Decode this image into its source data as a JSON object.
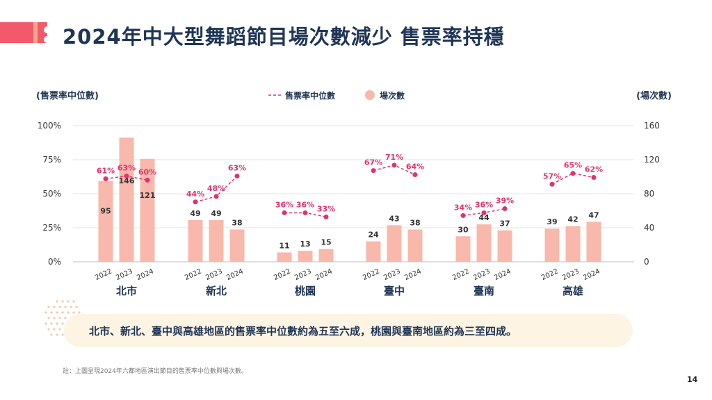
{
  "slide": {
    "title": "2024年中大型舞蹈節目場次數減少 售票率持穩",
    "summary": "北市、新北、臺中與高雄地區的售票率中位數約為五至六成，桃園與臺南地區約為三至四成。",
    "note": "註：上圖呈現2024年六都地區演出節目的售票率中位數與場次數。",
    "page_number": "14"
  },
  "colors": {
    "bar": "#f8b8ab",
    "line": "#e0336e",
    "title": "#1f3556",
    "accent": "#f25a6b"
  },
  "chart_data": {
    "type": "bar",
    "left_axis_label": "(售票率中位數)",
    "right_axis_label": "(場次數)",
    "legend": {
      "line": "售票率中位數",
      "bar": "場次數",
      "placement": "top-center"
    },
    "left_axis": {
      "ticks": [
        "0%",
        "25%",
        "50%",
        "75%",
        "100%"
      ],
      "range": [
        0,
        100
      ]
    },
    "right_axis": {
      "ticks": [
        "0",
        "40",
        "80",
        "120",
        "160"
      ],
      "range": [
        0,
        160
      ]
    },
    "grid": true,
    "groups": [
      {
        "region": "北市",
        "years": [
          "2022",
          "2023",
          "2024"
        ],
        "counts": [
          95,
          146,
          121
        ],
        "rates": [
          61,
          63,
          60
        ]
      },
      {
        "region": "新北",
        "years": [
          "2022",
          "2023",
          "2024"
        ],
        "counts": [
          49,
          49,
          38
        ],
        "rates": [
          44,
          48,
          63
        ]
      },
      {
        "region": "桃園",
        "years": [
          "2022",
          "2023",
          "2024"
        ],
        "counts": [
          11,
          13,
          15
        ],
        "rates": [
          36,
          36,
          33
        ]
      },
      {
        "region": "臺中",
        "years": [
          "2022",
          "2023",
          "2024"
        ],
        "counts": [
          24,
          43,
          38
        ],
        "rates": [
          67,
          71,
          64
        ]
      },
      {
        "region": "臺南",
        "years": [
          "2022",
          "2023",
          "2024"
        ],
        "counts": [
          30,
          44,
          37
        ],
        "rates": [
          34,
          36,
          39
        ]
      },
      {
        "region": "高雄",
        "years": [
          "2022",
          "2023",
          "2024"
        ],
        "counts": [
          39,
          42,
          47
        ],
        "rates": [
          57,
          65,
          62
        ]
      }
    ]
  }
}
